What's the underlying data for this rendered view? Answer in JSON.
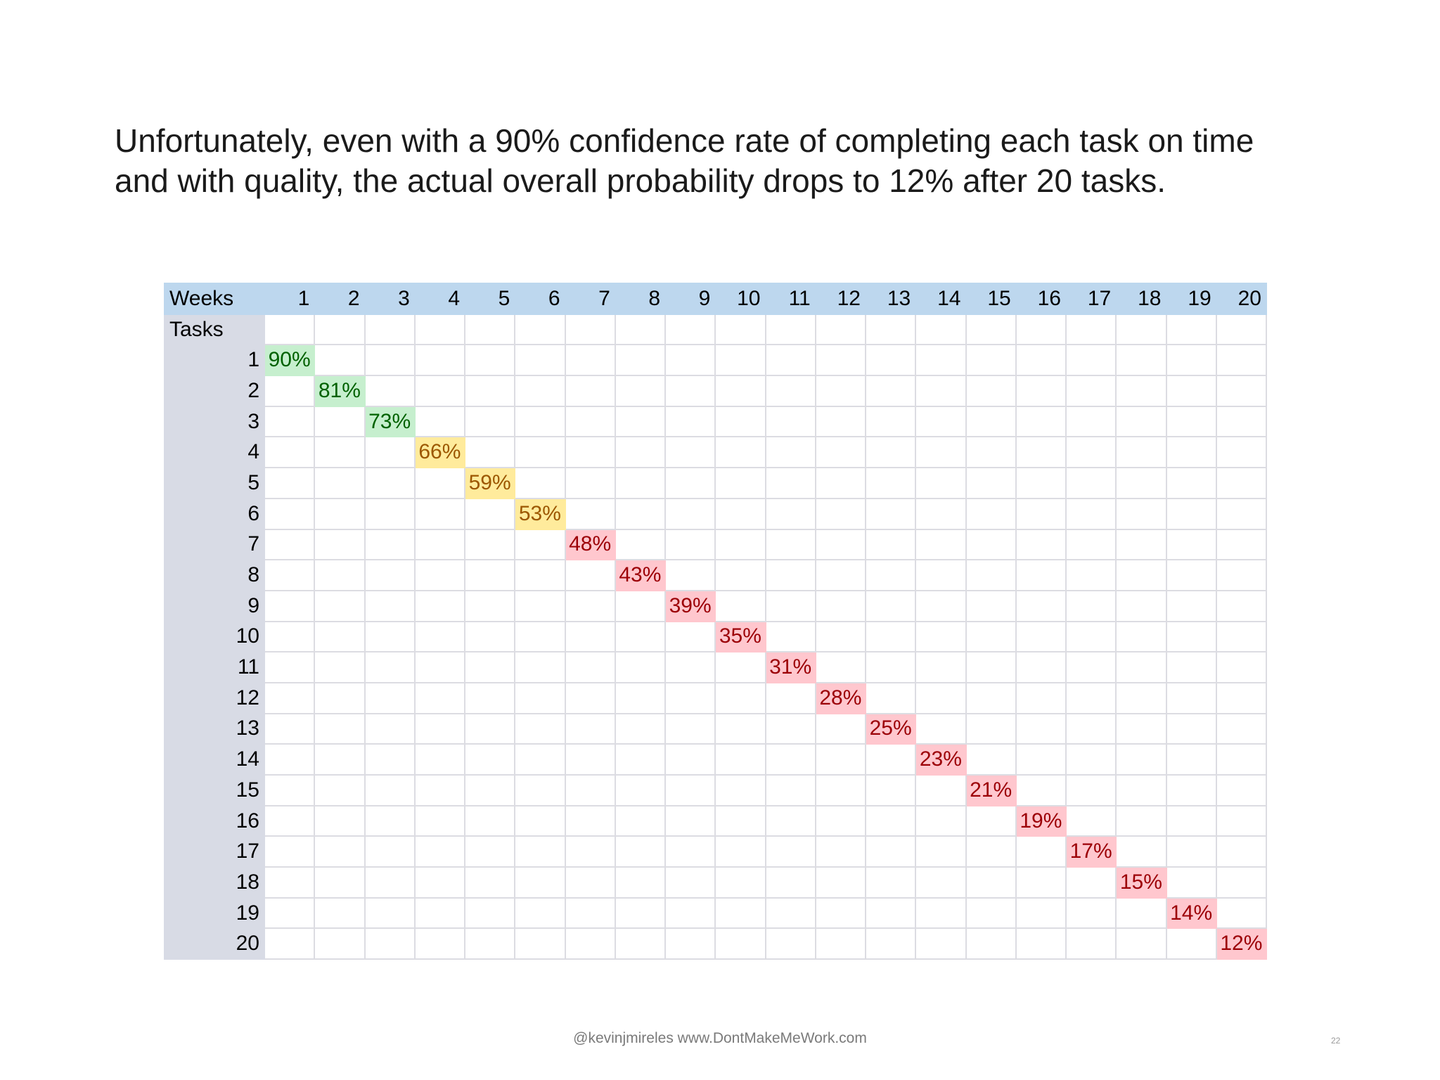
{
  "title": {
    "line1": "Unfortunately, even with a 90% confidence rate of completing each task on time",
    "line2": "and with quality, the actual overall probability drops to 12% after 20 tasks."
  },
  "table": {
    "corner_label": "Weeks",
    "row_header_label": "Tasks",
    "weeks": [
      "1",
      "2",
      "3",
      "4",
      "5",
      "6",
      "7",
      "8",
      "9",
      "10",
      "11",
      "12",
      "13",
      "14",
      "15",
      "16",
      "17",
      "18",
      "19",
      "20"
    ],
    "rows": [
      {
        "task": "1",
        "value": "90%",
        "bg": "#c6efce",
        "fg": "#006100"
      },
      {
        "task": "2",
        "value": "81%",
        "bg": "#c6efce",
        "fg": "#006100"
      },
      {
        "task": "3",
        "value": "73%",
        "bg": "#c6efce",
        "fg": "#006100"
      },
      {
        "task": "4",
        "value": "66%",
        "bg": "#ffeb9c",
        "fg": "#9c5700"
      },
      {
        "task": "5",
        "value": "59%",
        "bg": "#ffeb9c",
        "fg": "#9c5700"
      },
      {
        "task": "6",
        "value": "53%",
        "bg": "#ffeb9c",
        "fg": "#9c5700"
      },
      {
        "task": "7",
        "value": "48%",
        "bg": "#ffc7ce",
        "fg": "#9c0006"
      },
      {
        "task": "8",
        "value": "43%",
        "bg": "#ffc7ce",
        "fg": "#9c0006"
      },
      {
        "task": "9",
        "value": "39%",
        "bg": "#ffc7ce",
        "fg": "#9c0006"
      },
      {
        "task": "10",
        "value": "35%",
        "bg": "#ffc7ce",
        "fg": "#9c0006"
      },
      {
        "task": "11",
        "value": "31%",
        "bg": "#ffc7ce",
        "fg": "#9c0006"
      },
      {
        "task": "12",
        "value": "28%",
        "bg": "#ffc7ce",
        "fg": "#9c0006"
      },
      {
        "task": "13",
        "value": "25%",
        "bg": "#ffc7ce",
        "fg": "#9c0006"
      },
      {
        "task": "14",
        "value": "23%",
        "bg": "#ffc7ce",
        "fg": "#9c0006"
      },
      {
        "task": "15",
        "value": "21%",
        "bg": "#ffc7ce",
        "fg": "#9c0006"
      },
      {
        "task": "16",
        "value": "19%",
        "bg": "#ffc7ce",
        "fg": "#9c0006"
      },
      {
        "task": "17",
        "value": "17%",
        "bg": "#ffc7ce",
        "fg": "#9c0006"
      },
      {
        "task": "18",
        "value": "15%",
        "bg": "#ffc7ce",
        "fg": "#9c0006"
      },
      {
        "task": "19",
        "value": "14%",
        "bg": "#ffc7ce",
        "fg": "#9c0006"
      },
      {
        "task": "20",
        "value": "12%",
        "bg": "#ffc7ce",
        "fg": "#9c0006"
      }
    ]
  },
  "footer": {
    "credit": "@kevinjmireles www.DontMakeMeWork.com",
    "page_number": "22"
  }
}
